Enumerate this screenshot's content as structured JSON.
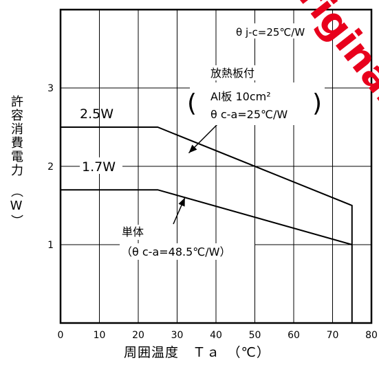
{
  "chart_data": {
    "type": "line",
    "xlabel": "周囲温度　Ｔａ　（℃）",
    "ylabel": "許容消費電力　（W）",
    "xlim": [
      0,
      80
    ],
    "ylim": [
      0,
      4
    ],
    "xticks": [
      "0",
      "10",
      "20",
      "30",
      "40",
      "50",
      "60",
      "70",
      "80"
    ],
    "yticks": [
      "1",
      "2",
      "3"
    ],
    "grid": true,
    "series": [
      {
        "name": "放熱板付",
        "x": [
          0,
          25,
          75,
          75
        ],
        "y": [
          2.5,
          2.5,
          1.5,
          0
        ],
        "label": "2.5W"
      },
      {
        "name": "単体",
        "x": [
          0,
          25,
          75
        ],
        "y": [
          1.7,
          1.7,
          1.0
        ],
        "label": "1.7W"
      }
    ],
    "annotations": {
      "theta_jc": "θ j-c=25℃/W",
      "heatsink_title": "放熱板付",
      "heatsink_plate": "Al板  10cm²",
      "heatsink_theta": "θ c-a=25℃/W",
      "single_title": "単体",
      "single_theta": "（θ c-a=48.5℃/W）"
    }
  },
  "watermark": "original"
}
